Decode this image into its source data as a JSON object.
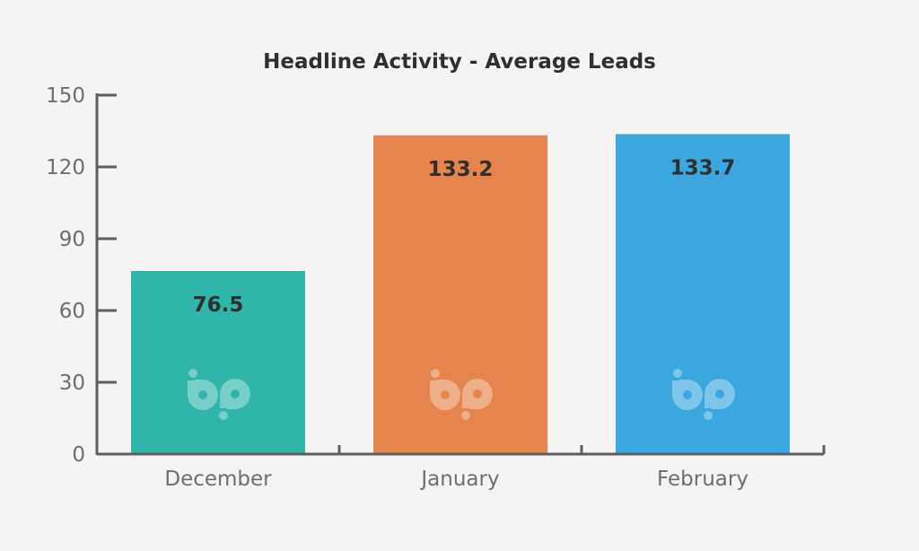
{
  "chart_data": {
    "type": "bar",
    "title": "Headline Activity - Average Leads",
    "categories": [
      "December",
      "January",
      "February"
    ],
    "values": [
      76.5,
      133.2,
      133.7
    ],
    "value_labels": [
      "76.5",
      "133.2",
      "133.7"
    ],
    "bar_colors": [
      "#2fb5aa",
      "#e5844d",
      "#3aa7df"
    ],
    "axis_color": "#5e5e5e",
    "watermark_icon": "bp-logo-icon",
    "xlabel": "",
    "ylabel": "",
    "ylim": [
      0,
      150
    ],
    "yticks": [
      0,
      30,
      60,
      90,
      120,
      150
    ],
    "ytick_labels": [
      "0",
      "30",
      "60",
      "90",
      "120",
      "150"
    ],
    "grid": false,
    "legend": "none"
  }
}
